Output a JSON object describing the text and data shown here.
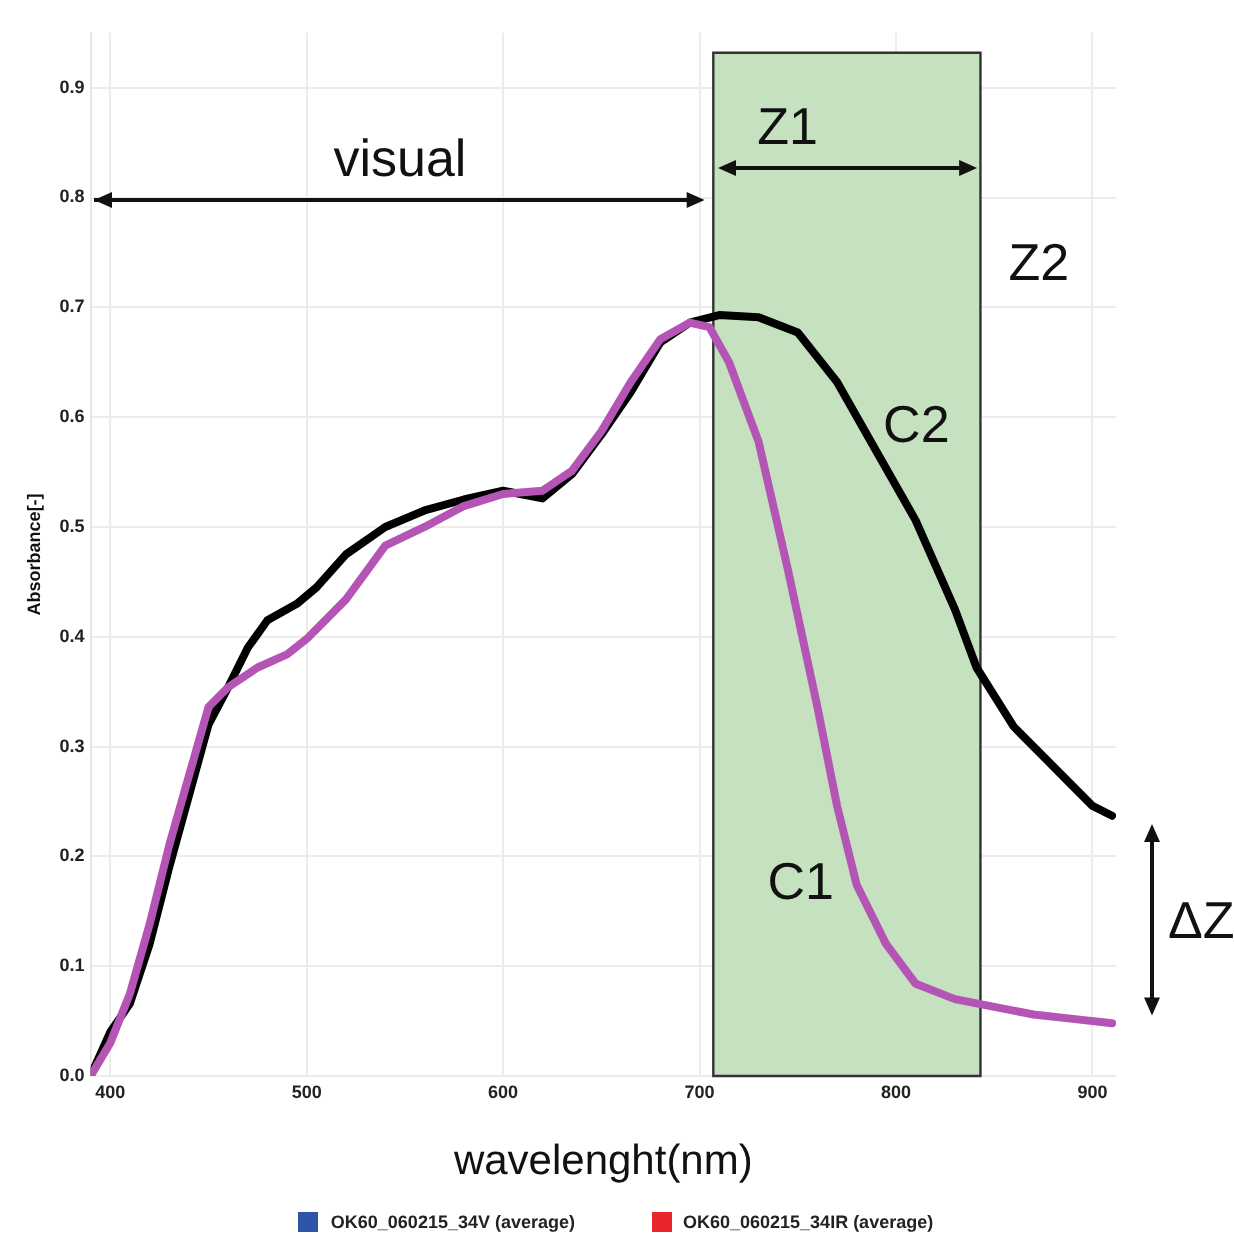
{
  "chart_data": {
    "type": "line",
    "xlabel": "wavelenght(nm)",
    "ylabel": "Absorbance[-]",
    "xlim": [
      390,
      912
    ],
    "xticks": [
      400,
      500,
      600,
      700,
      800,
      900
    ],
    "ylim": [
      0,
      0.95
    ],
    "yticks": [
      {
        "value": 0,
        "label": "0.0"
      },
      0.1,
      0.2,
      0.3,
      0.4,
      0.5,
      0.6,
      0.7,
      0.8,
      0.9
    ],
    "grid": true,
    "marker": "none",
    "line_style": "solid",
    "series": [
      {
        "name": "C1",
        "color": "#b455b6",
        "x": [
          390,
          400,
          410,
          420,
          430,
          440,
          450,
          460,
          475,
          490,
          500,
          520,
          540,
          560,
          580,
          600,
          620,
          635,
          650,
          665,
          680,
          695,
          705,
          715,
          730,
          745,
          760,
          770,
          780,
          795,
          810,
          830,
          850,
          870,
          890,
          910
        ],
        "values": [
          0,
          0.03,
          0.075,
          0.138,
          0.21,
          0.273,
          0.336,
          0.354,
          0.372,
          0.384,
          0.398,
          0.434,
          0.483,
          0.5,
          0.519,
          0.53,
          0.533,
          0.551,
          0.587,
          0.632,
          0.671,
          0.686,
          0.682,
          0.65,
          0.578,
          0.461,
          0.336,
          0.246,
          0.174,
          0.12,
          0.084,
          0.07,
          0.063,
          0.056,
          0.052,
          0.048
        ]
      },
      {
        "name": "C2",
        "color": "#000000",
        "x": [
          390,
          400,
          410,
          420,
          430,
          440,
          450,
          460,
          470,
          480,
          495,
          505,
          520,
          540,
          560,
          580,
          600,
          620,
          635,
          650,
          665,
          680,
          695,
          710,
          730,
          750,
          770,
          790,
          810,
          830,
          841,
          860,
          880,
          900,
          910
        ],
        "values": [
          0,
          0.04,
          0.066,
          0.12,
          0.19,
          0.255,
          0.32,
          0.354,
          0.39,
          0.415,
          0.43,
          0.445,
          0.475,
          0.5,
          0.515,
          0.525,
          0.533,
          0.526,
          0.548,
          0.584,
          0.623,
          0.668,
          0.686,
          0.693,
          0.691,
          0.677,
          0.632,
          0.569,
          0.506,
          0.425,
          0.372,
          0.318,
          0.282,
          0.246,
          0.237
        ]
      }
    ],
    "bands": [
      {
        "axis": "x",
        "from": 707,
        "to": 843,
        "color": "#c5e1c0"
      }
    ],
    "annotations": [
      "visual",
      "Z1",
      "Z2",
      "ΔZ",
      "OK60_060215_34V (average)",
      "OK60_060215_34IR (average)"
    ]
  }
}
